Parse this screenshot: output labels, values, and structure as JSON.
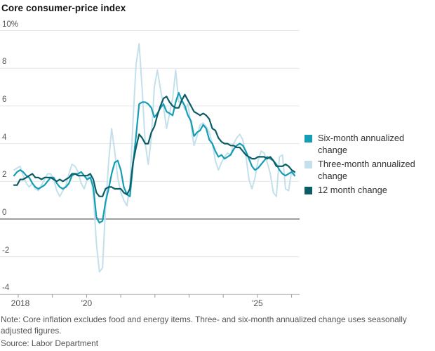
{
  "chart_data": {
    "type": "line",
    "title": "Core consumer-price index",
    "grid": true,
    "legend_position": "right",
    "y_axis": {
      "unit": "%",
      "ylim": [
        -4,
        10
      ],
      "tick_values": [
        10,
        8,
        6,
        4,
        2,
        0,
        -2,
        -4
      ],
      "tick_labels": [
        "10%",
        "8",
        "6",
        "4",
        "2",
        "0",
        "-2",
        "-4"
      ]
    },
    "x_axis": {
      "start": "2018-01",
      "end": "2025-09",
      "frequency": "monthly",
      "ticks": [
        {
          "year": 2018,
          "label": "2018"
        },
        {
          "year": 2019,
          "label": ""
        },
        {
          "year": 2020,
          "label": "'20"
        },
        {
          "year": 2021,
          "label": ""
        },
        {
          "year": 2022,
          "label": ""
        },
        {
          "year": 2023,
          "label": ""
        },
        {
          "year": 2024,
          "label": ""
        },
        {
          "year": 2025,
          "label": "'25"
        },
        {
          "year": 2026,
          "label": ""
        }
      ]
    },
    "series": [
      {
        "name": "Six-month annualized change",
        "color": "#149db4",
        "values": [
          2.3,
          2.5,
          2.6,
          2.5,
          2.3,
          2.2,
          1.9,
          1.7,
          1.6,
          1.7,
          1.8,
          2.0,
          2.2,
          2.2,
          1.9,
          1.7,
          1.6,
          1.7,
          1.9,
          2.3,
          2.4,
          2.4,
          2.5,
          2.3,
          2.1,
          2.2,
          1.7,
          0.1,
          -0.2,
          -0.1,
          0.9,
          1.6,
          2.4,
          3.0,
          3.1,
          2.6,
          1.7,
          1.3,
          1.2,
          2.9,
          4.4,
          6.1,
          6.2,
          6.2,
          6.1,
          5.9,
          5.4,
          5.6,
          5.9,
          6.1,
          5.7,
          5.6,
          5.5,
          6.2,
          6.7,
          6.3,
          6.0,
          5.5,
          5.2,
          4.4,
          4.6,
          4.7,
          5.0,
          4.8,
          4.2,
          4.0,
          3.6,
          3.3,
          3.4,
          3.2,
          3.3,
          3.4,
          3.7,
          3.9,
          4.0,
          3.9,
          3.6,
          3.2,
          2.8,
          2.6,
          2.7,
          2.9,
          3.1,
          3.3,
          3.2,
          3.1,
          2.9,
          2.6,
          2.4,
          2.3,
          2.4,
          2.5,
          2.3
        ]
      },
      {
        "name": "Three-month annualized change",
        "color": "#c3e0ec",
        "values": [
          2.6,
          2.7,
          2.8,
          2.3,
          1.9,
          1.7,
          1.9,
          1.6,
          1.5,
          1.8,
          2.1,
          2.4,
          2.4,
          2.1,
          1.5,
          1.2,
          1.5,
          1.8,
          2.4,
          2.9,
          2.8,
          2.5,
          1.9,
          1.6,
          2.1,
          2.4,
          1.3,
          -1.3,
          -2.8,
          -2.6,
          0.6,
          3.0,
          4.8,
          3.6,
          2.2,
          1.4,
          1.0,
          0.7,
          1.8,
          5.2,
          8.2,
          9.3,
          6.9,
          4.0,
          2.9,
          4.3,
          7.0,
          7.9,
          6.9,
          6.0,
          4.8,
          5.6,
          6.4,
          7.9,
          6.2,
          6.3,
          5.8,
          6.1,
          5.0,
          3.9,
          4.4,
          5.0,
          5.1,
          4.9,
          4.6,
          4.0,
          3.1,
          2.6,
          3.0,
          3.3,
          3.5,
          3.4,
          4.0,
          4.3,
          4.5,
          4.2,
          3.4,
          2.1,
          1.6,
          2.2,
          3.1,
          3.6,
          3.5,
          3.0,
          2.4,
          1.4,
          1.2,
          3.3,
          3.4,
          1.6,
          1.5,
          2.6,
          2.4
        ]
      },
      {
        "name": "12 month change",
        "color": "#0c5c66",
        "values": [
          1.8,
          1.8,
          2.1,
          2.1,
          2.2,
          2.3,
          2.4,
          2.2,
          2.2,
          2.1,
          2.2,
          2.2,
          2.2,
          2.1,
          2.0,
          2.1,
          2.0,
          2.1,
          2.2,
          2.4,
          2.4,
          2.3,
          2.3,
          2.3,
          2.3,
          2.4,
          2.1,
          1.4,
          1.2,
          1.2,
          1.6,
          1.7,
          1.7,
          1.6,
          1.6,
          1.6,
          1.4,
          1.3,
          1.6,
          3.0,
          3.8,
          4.5,
          4.3,
          4.0,
          4.0,
          4.6,
          4.9,
          5.5,
          6.0,
          6.4,
          6.5,
          6.2,
          6.0,
          5.9,
          5.9,
          6.3,
          6.6,
          6.3,
          6.0,
          5.7,
          5.6,
          5.5,
          5.6,
          5.5,
          5.3,
          4.8,
          4.7,
          4.3,
          4.1,
          4.0,
          4.0,
          3.9,
          3.9,
          3.8,
          3.8,
          3.6,
          3.4,
          3.3,
          3.2,
          3.2,
          3.3,
          3.3,
          3.3,
          3.2,
          3.3,
          3.1,
          2.8,
          2.8,
          2.8,
          2.9,
          2.8,
          2.6,
          2.5
        ]
      }
    ],
    "colors": {
      "gridline": "#e6e6e6",
      "zero_line": "#909090",
      "axis_line": "#cccccc",
      "tick_mark": "#999999"
    }
  },
  "footer": {
    "note": "Note: Core inflation excludes food and energy items. Three- and six-month annualized change uses seasonally adjusted figures.",
    "source": "Source: Labor Department"
  }
}
